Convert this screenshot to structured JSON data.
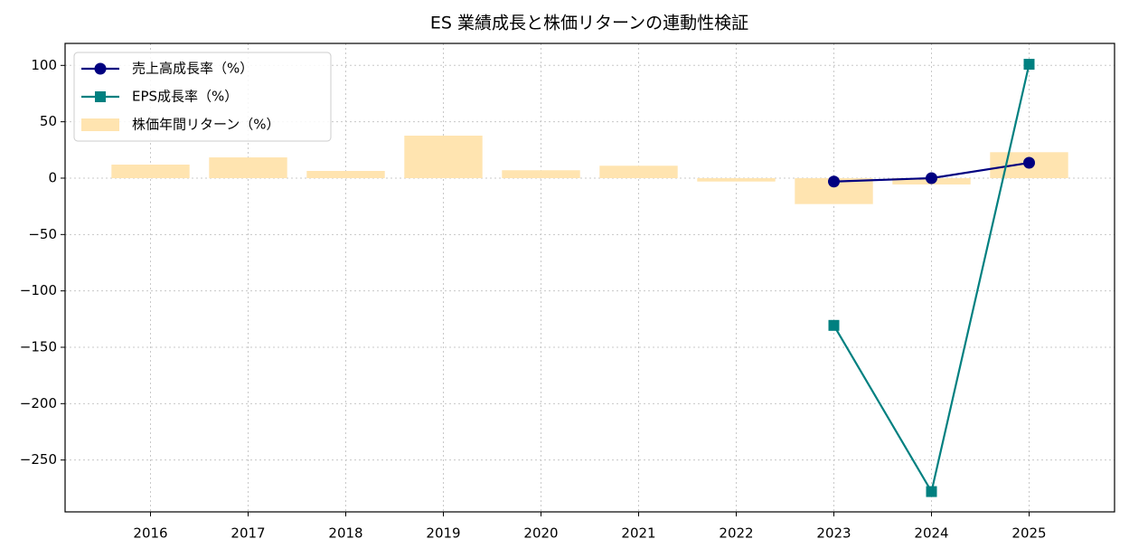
{
  "chart_data": {
    "type": "combo",
    "title": "ES 業績成長と株価リターンの連動性検証",
    "categories": [
      "2016",
      "2017",
      "2018",
      "2019",
      "2020",
      "2021",
      "2022",
      "2023",
      "2024",
      "2025"
    ],
    "series": [
      {
        "name": "売上高成長率（%）",
        "type": "line",
        "marker": "circle",
        "color": "#000080",
        "values": [
          null,
          null,
          null,
          null,
          null,
          null,
          null,
          -3,
          0,
          13.6
        ]
      },
      {
        "name": "EPS成長率（%）",
        "type": "line",
        "marker": "square",
        "color": "#008080",
        "values": [
          null,
          null,
          null,
          null,
          null,
          null,
          null,
          -130.6,
          -278,
          101
        ]
      },
      {
        "name": "株価年間リターン（%）",
        "type": "bar",
        "color": "#ffe4b0",
        "values": [
          12,
          18.4,
          6.4,
          37.7,
          7,
          11,
          -3,
          -23,
          -5.6,
          23
        ]
      }
    ],
    "ylim": [
      -296,
      119.5
    ],
    "yticks": [
      {
        "value": -250,
        "label": "−250"
      },
      {
        "value": -200,
        "label": "−200"
      },
      {
        "value": -150,
        "label": "−150"
      },
      {
        "value": -100,
        "label": "−100"
      },
      {
        "value": -50,
        "label": "−50"
      },
      0,
      50,
      100
    ],
    "grid": true,
    "legend": "upper-left"
  }
}
